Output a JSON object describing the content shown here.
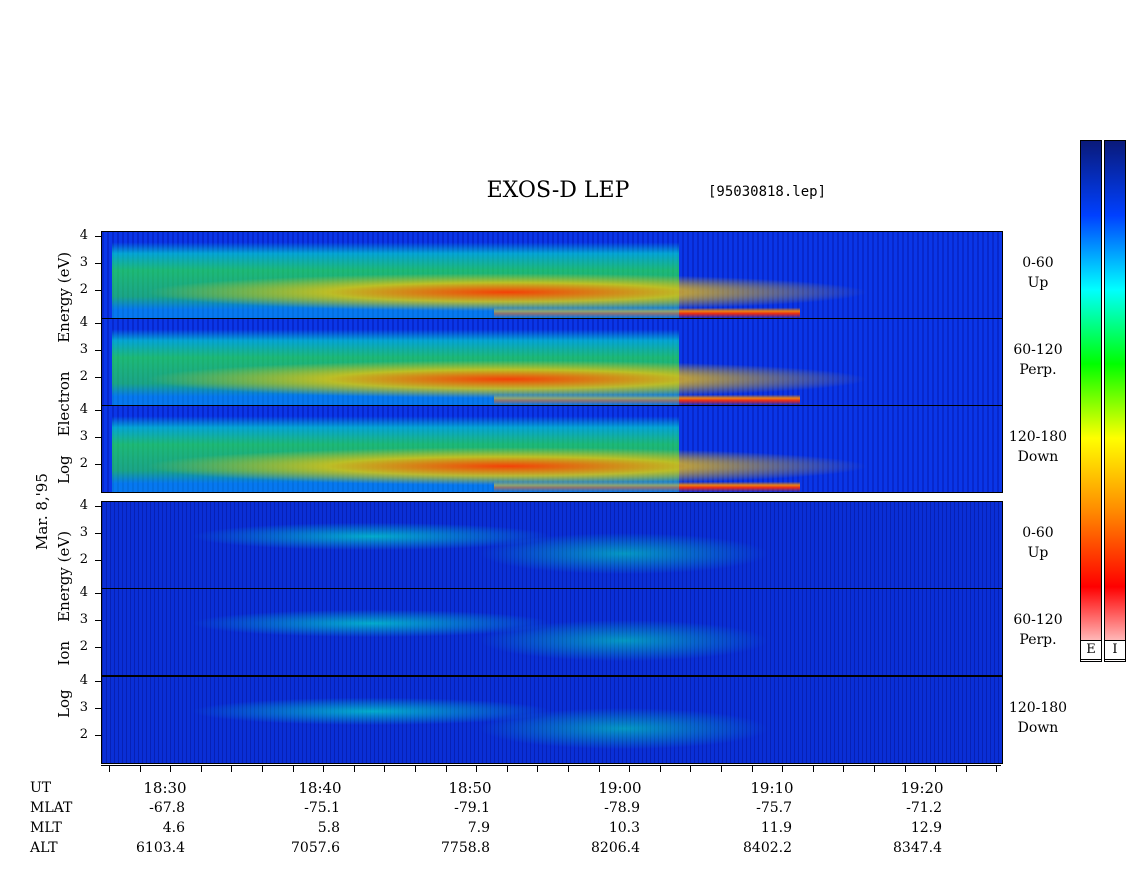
{
  "chart_data": {
    "type": "heatmap",
    "title": "EXOS-D LEP",
    "file_tag": "[95030818.lep]",
    "date_label": "Mar. 8,'95",
    "electron_ylabel_lines": [
      "Log",
      "Electron",
      "Energy",
      "(eV)"
    ],
    "ion_ylabel_lines": [
      "Log",
      "Ion",
      "Energy",
      "(eV)"
    ],
    "y_ticks": [
      "4",
      "3",
      "2"
    ],
    "ylim": [
      1,
      4.2
    ],
    "channels": [
      {
        "line1": "0-60",
        "line2": "Up"
      },
      {
        "line1": "60-120",
        "line2": "Perp."
      },
      {
        "line1": "120-180",
        "line2": "Down"
      }
    ],
    "x_ticks": [
      "18:30",
      "18:40",
      "18:50",
      "19:00",
      "19:10",
      "19:20"
    ],
    "footer_labels": [
      "UT",
      "MLAT",
      "MLT",
      "ALT"
    ],
    "MLAT": [
      "-67.8",
      "-75.1",
      "-79.1",
      "-78.9",
      "-75.7",
      "-71.2"
    ],
    "MLT": [
      "4.6",
      "5.8",
      "7.9",
      "10.3",
      "11.9",
      "12.9"
    ],
    "ALT": [
      "6103.4",
      "7057.6",
      "7758.8",
      "8206.4",
      "8402.2",
      "8347.4"
    ],
    "colorbar_labels": [
      "E",
      "I"
    ],
    "colorbar_colors": [
      "#0a1a7a",
      "#0040ff",
      "#00ffff",
      "#00ff00",
      "#ffff00",
      "#ff8800",
      "#ff0000",
      "#ffffff"
    ]
  }
}
